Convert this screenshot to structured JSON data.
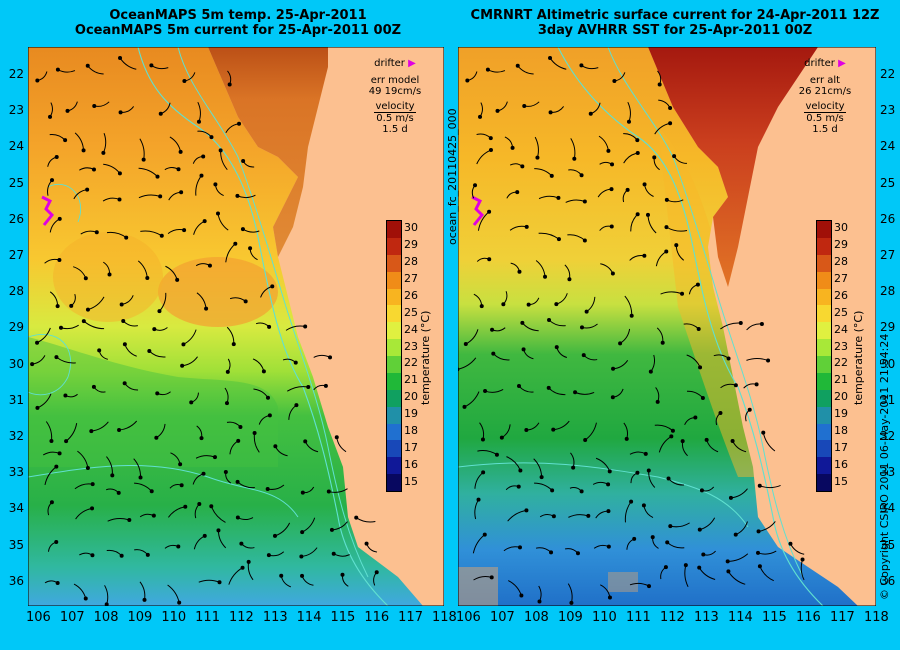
{
  "colors": {
    "background": "#00c8f8",
    "land": "#fcc090",
    "drifter": "#e000e0",
    "contour": "#60e0d0",
    "arrow": "#000000"
  },
  "left_panel": {
    "title_line1": "OceanMAPS 5m temp. 25-Apr-2011",
    "title_line2": "OceanMAPS 5m current for 25-Apr-2011 00Z",
    "legend": {
      "drifter": "drifter",
      "err_label": "err model",
      "err_value": "49 19cm/s",
      "velocity": "velocity",
      "speed": "0.5 m/s",
      "duration": "1.5 d"
    },
    "colorbar_label": "temperature (°C)"
  },
  "right_panel": {
    "title_line1": "CMRNRT Altimetric surface current for 24-Apr-2011 12Z",
    "title_line2": "3day AVHRR SST for 25-Apr-2011 00Z",
    "legend": {
      "drifter": "drifter",
      "err_label": "err alt",
      "err_value": "26 21cm/s",
      "velocity": "velocity",
      "speed": "0.5 m/s",
      "duration": "1.5 d"
    },
    "colorbar_label": "temperature (°C)"
  },
  "center_vertical_label": "ocean_fc_20110425_000",
  "right_vertical_label": "© Copyright CSIRO 2011  06-May-2011 21:54:24",
  "map": {
    "lon_ticks": [
      "106",
      "107",
      "108",
      "109",
      "110",
      "111",
      "112",
      "113",
      "114",
      "115",
      "116",
      "117",
      "118"
    ],
    "lat_ticks": [
      "22",
      "23",
      "24",
      "25",
      "26",
      "27",
      "28",
      "29",
      "30",
      "31",
      "32",
      "33",
      "34",
      "35",
      "36"
    ]
  },
  "colorbar": {
    "ticks": [
      "30",
      "29",
      "28",
      "27",
      "26",
      "25",
      "24",
      "23",
      "22",
      "21",
      "20",
      "19",
      "18",
      "17",
      "16",
      "15"
    ],
    "colors": [
      "#a01008",
      "#c02810",
      "#d85818",
      "#f08c18",
      "#f8b420",
      "#f8d830",
      "#e0f040",
      "#a8e838",
      "#60d038",
      "#20b838",
      "#10a060",
      "#2090a8",
      "#2070d0",
      "#1848b8",
      "#101898",
      "#080860"
    ]
  }
}
